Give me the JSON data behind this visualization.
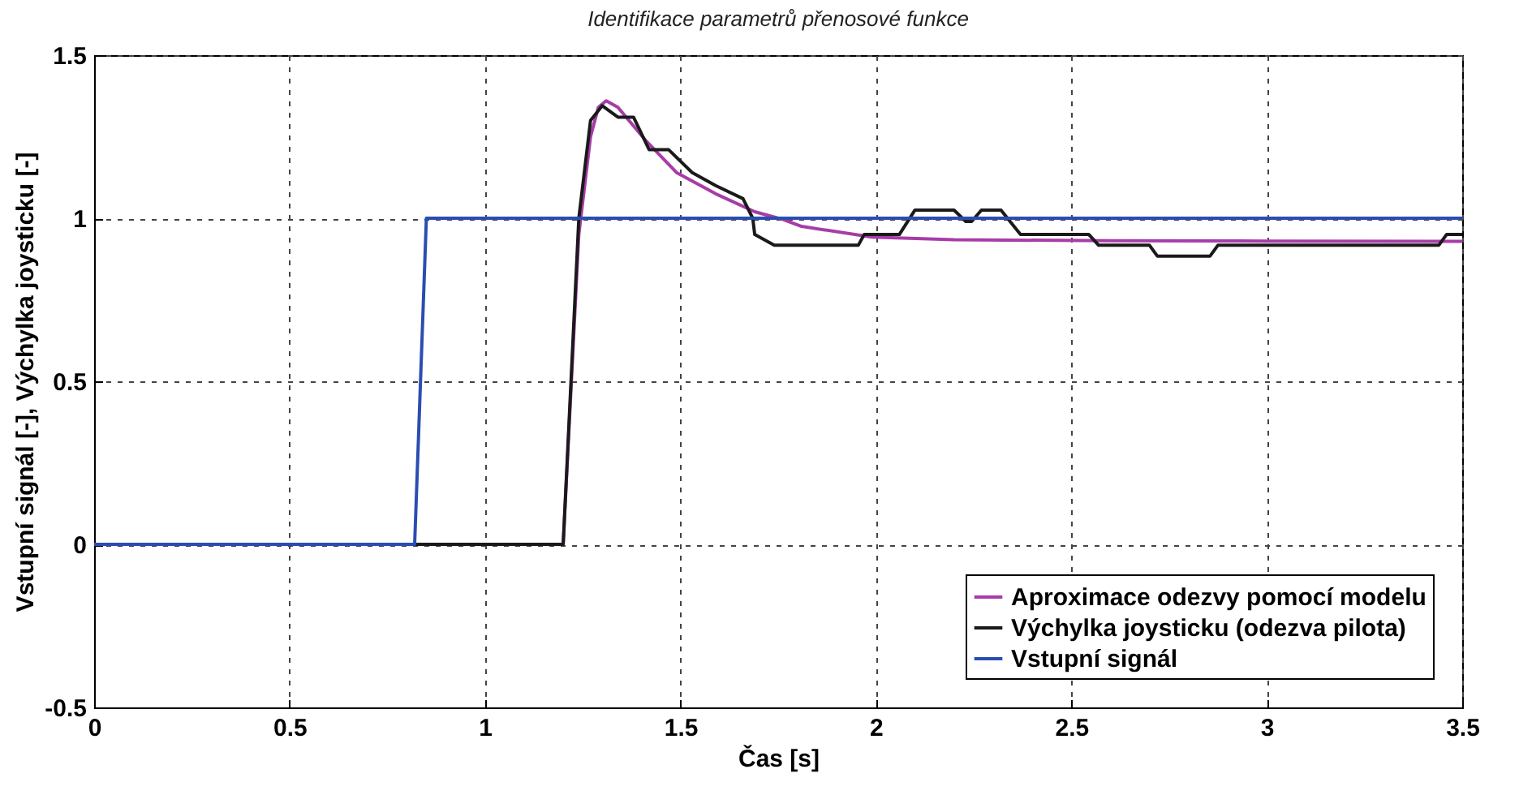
{
  "chart_data": {
    "type": "line",
    "title": "Identifikace parametrů přenosové funkce",
    "xlabel": "Čas [s]",
    "ylabel": "Vstupní signál [-],  Výchylka joysticku [-]",
    "xlim": [
      0,
      3.5
    ],
    "xticks": [
      0,
      0.5,
      1,
      1.5,
      2,
      2.5,
      3,
      3.5
    ],
    "ylim": [
      -0.5,
      1.5
    ],
    "yticks": [
      -0.5,
      0,
      0.5,
      1,
      1.5
    ],
    "grid": true,
    "legend": "bottom right",
    "line_style": "solid",
    "series": [
      {
        "name": "Aproximace odezvy pomocí modelu",
        "color": "#a83ca8",
        "x": [
          1.2,
          1.24,
          1.27,
          1.29,
          1.31,
          1.34,
          1.41,
          1.49,
          1.59,
          1.69,
          1.76,
          1.81,
          1.99,
          2.2,
          2.6,
          3.0,
          3.5
        ],
        "values": [
          0,
          0.95,
          1.25,
          1.34,
          1.36,
          1.34,
          1.24,
          1.14,
          1.075,
          1.02,
          0.997,
          0.975,
          0.942,
          0.934,
          0.931,
          0.93,
          0.929
        ]
      },
      {
        "name": "Výchylka joysticku (odezva pilota)",
        "color": "#1a1a1a",
        "x": [
          0,
          1.2,
          1.24,
          1.27,
          1.3,
          1.34,
          1.38,
          1.42,
          1.47,
          1.53,
          1.59,
          1.66,
          1.685,
          1.69,
          1.74,
          1.955,
          1.97,
          2.06,
          2.1,
          2.2,
          2.23,
          2.245,
          2.27,
          2.32,
          2.37,
          2.545,
          2.57,
          2.7,
          2.72,
          2.855,
          2.875,
          3.44,
          3.46,
          3.5
        ],
        "values": [
          0,
          0,
          1.0,
          1.3,
          1.345,
          1.31,
          1.31,
          1.21,
          1.21,
          1.14,
          1.1,
          1.06,
          1.0,
          0.95,
          0.917,
          0.917,
          0.95,
          0.95,
          1.025,
          1.025,
          0.99,
          0.99,
          1.025,
          1.025,
          0.95,
          0.95,
          0.917,
          0.917,
          0.884,
          0.884,
          0.917,
          0.917,
          0.95,
          0.95
        ]
      },
      {
        "name": "Vstupní signál",
        "color": "#2a4db0",
        "x": [
          0,
          0.82,
          0.85,
          3.5
        ],
        "values": [
          0,
          0,
          1,
          1
        ]
      }
    ]
  }
}
